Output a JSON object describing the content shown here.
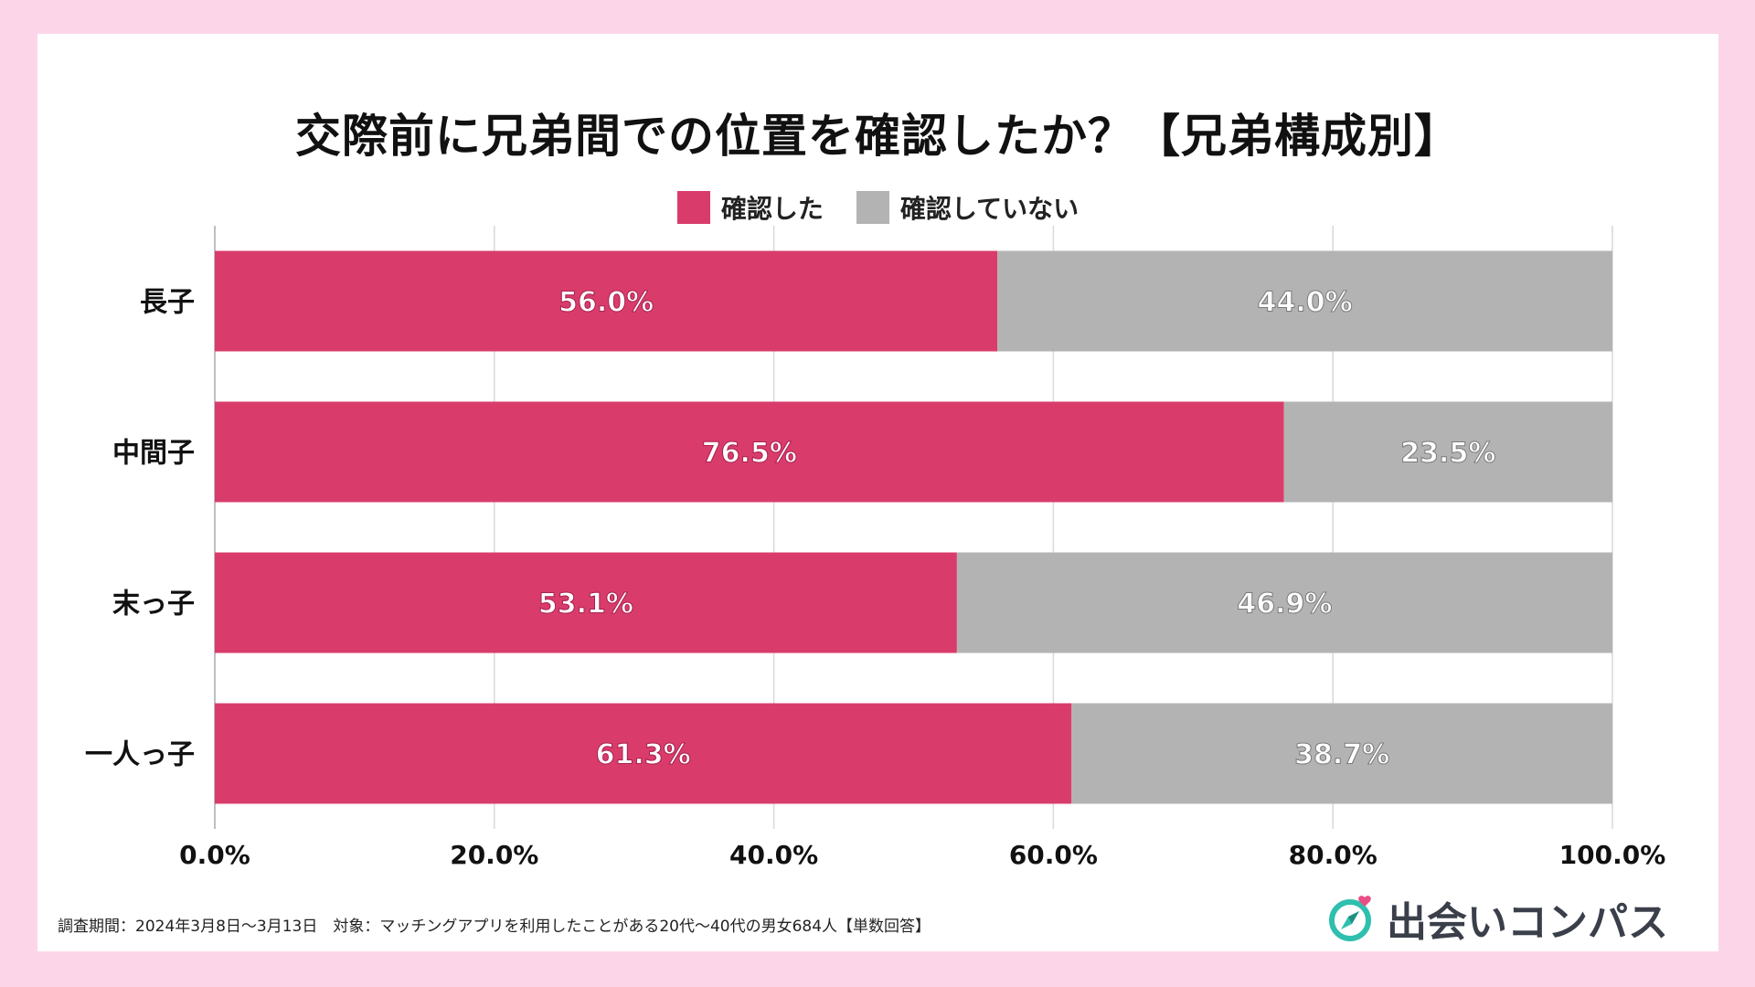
{
  "colors": {
    "confirmed": "#d93c6b",
    "not_confirmed": "#b3b3b3",
    "background": "#fcd6e8"
  },
  "chart_data": {
    "type": "bar",
    "orientation": "horizontal",
    "stacked": true,
    "title": "交際前に兄弟間での位置を確認したか？【兄弟構成別】",
    "categories": [
      "長子",
      "中間子",
      "末っ子",
      "一人っ子"
    ],
    "series": [
      {
        "name": "確認した",
        "values": [
          56.0,
          76.5,
          53.1,
          61.3
        ],
        "labels": [
          "56.0%",
          "76.5%",
          "53.1%",
          "61.3%"
        ]
      },
      {
        "name": "確認していない",
        "values": [
          44.0,
          23.5,
          46.9,
          38.7
        ],
        "labels": [
          "44.0%",
          "23.5%",
          "46.9%",
          "38.7%"
        ]
      }
    ],
    "xlim": [
      0,
      100
    ],
    "x_ticks": [
      "0.0%",
      "20.0%",
      "40.0%",
      "60.0%",
      "80.0%",
      "100.0%"
    ],
    "grid": true,
    "legend": "top-center"
  },
  "footnote": "調査期間：2024年3月8日〜3月13日　対象：マッチングアプリを利用したことがある20代〜40代の男女684人【単数回答】",
  "brand": {
    "name": "出会いコンパス",
    "icon": "compass-heart-icon"
  }
}
